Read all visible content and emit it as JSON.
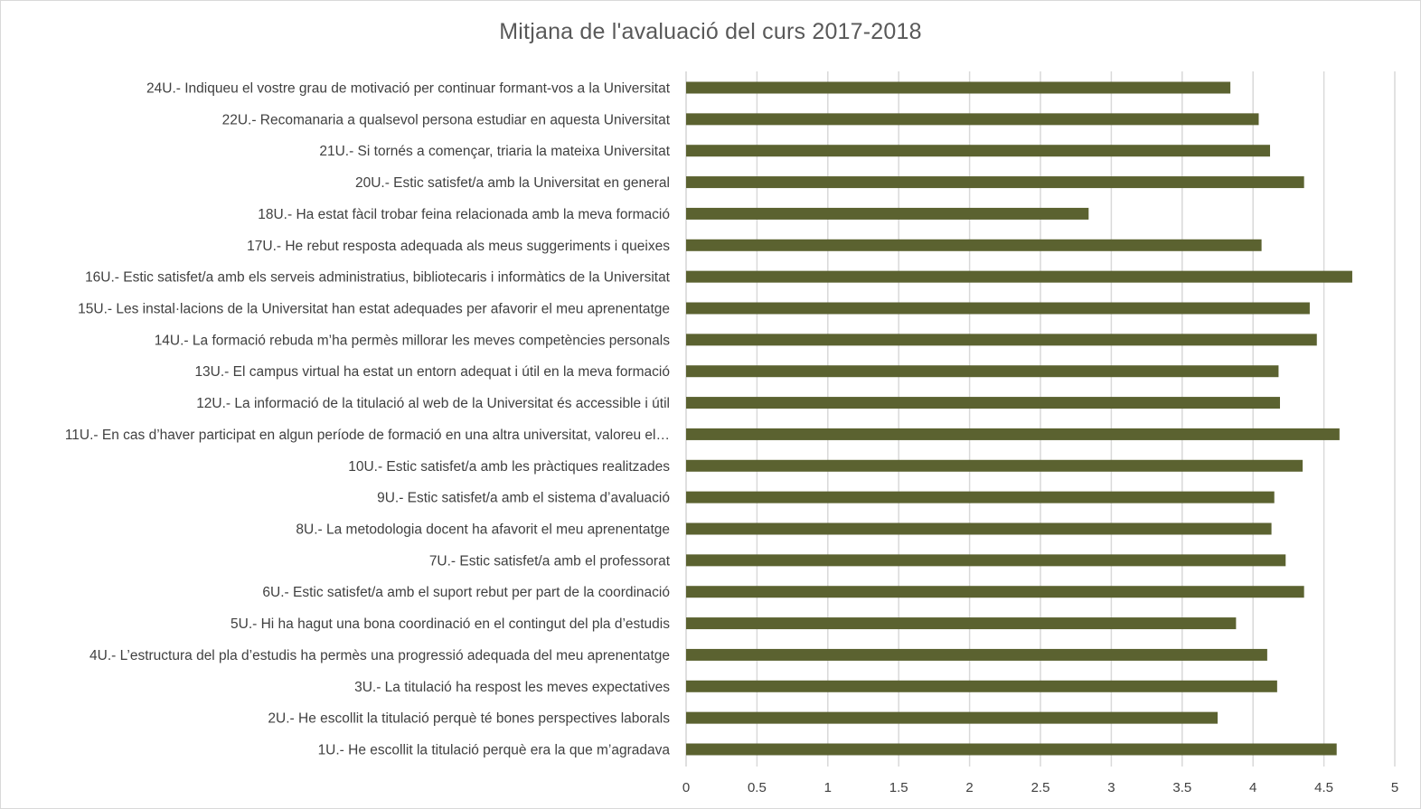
{
  "chart_data": {
    "type": "bar",
    "orientation": "horizontal",
    "title": "Mitjana de l'avaluació del curs 2017-2018",
    "xlabel": "",
    "ylabel": "",
    "xlim": [
      0,
      5
    ],
    "ticks": [
      "0",
      "0.5",
      "1",
      "1.5",
      "2",
      "2.5",
      "3",
      "3.5",
      "4",
      "4.5",
      "5"
    ],
    "grid": "vertical",
    "bar_color": "#5b6230",
    "categories": [
      "24U.- Indiqueu el vostre grau de motivació per continuar formant-vos a la Universitat",
      "22U.- Recomanaria a qualsevol persona estudiar en aquesta Universitat",
      "21U.- Si tornés a començar, triaria la mateixa Universitat",
      "20U.- Estic satisfet/a amb la Universitat en general",
      "18U.- Ha estat fàcil trobar feina relacionada amb la meva formació",
      "17U.- He rebut resposta adequada als meus suggeriments i queixes",
      "16U.- Estic satisfet/a amb els serveis administratius, bibliotecaris i informàtics de la Universitat",
      "15U.- Les instal·lacions de la Universitat han estat adequades per afavorir el meu aprenentatge",
      "14U.- La formació rebuda m’ha permès millorar les meves competències personals",
      "13U.- El campus virtual ha estat un entorn adequat i útil en la meva formació",
      "12U.- La informació de la titulació al web de la Universitat és accessible i útil",
      "11U.- En cas d’haver participat en algun període de formació en una altra universitat, valoreu el…",
      "10U.- Estic satisfet/a amb les pràctiques realitzades",
      "9U.- Estic satisfet/a amb el sistema d’avaluació",
      "8U.- La metodologia docent ha afavorit el meu aprenentatge",
      "7U.- Estic satisfet/a amb el professorat",
      "6U.- Estic satisfet/a amb el suport rebut per part de la coordinació",
      "5U.- Hi ha hagut una bona coordinació en el contingut del pla d’estudis",
      "4U.- L’estructura del pla d’estudis ha permès una progressió adequada del meu aprenentatge",
      "3U.- La titulació ha respost les meves expectatives",
      "2U.- He escollit la titulació perquè té bones perspectives laborals",
      "1U.- He escollit la titulació perquè era la que m’agradava"
    ],
    "values": [
      3.84,
      4.04,
      4.12,
      4.36,
      2.84,
      4.06,
      4.7,
      4.4,
      4.45,
      4.18,
      4.19,
      4.61,
      4.35,
      4.15,
      4.13,
      4.23,
      4.36,
      3.88,
      4.1,
      4.17,
      3.75,
      4.59
    ]
  }
}
